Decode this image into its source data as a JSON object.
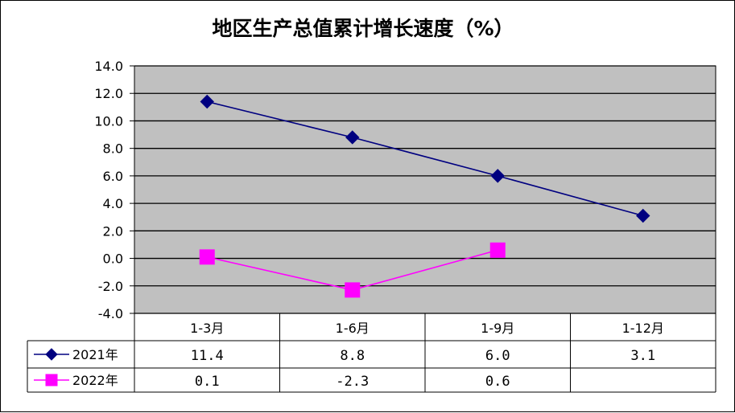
{
  "chart_data": {
    "type": "line",
    "title": "地区生产总值累计增长速度（%）",
    "categories": [
      "1-3月",
      "1-6月",
      "1-9月",
      "1-12月"
    ],
    "ylim": [
      -4.0,
      14.0
    ],
    "yticks": [
      "14.0",
      "12.0",
      "10.0",
      "8.0",
      "6.0",
      "4.0",
      "2.0",
      "0.0",
      "-2.0",
      "-4.0"
    ],
    "grid": true,
    "legend": "data-table",
    "series": [
      {
        "name": "2021年",
        "values": [
          11.4,
          8.8,
          6.0,
          3.1
        ],
        "labels": [
          "11.4",
          "8.8",
          "6.0",
          "3.1"
        ],
        "color": "#000080",
        "marker": "diamond"
      },
      {
        "name": "2022年",
        "values": [
          0.1,
          -2.3,
          0.6,
          null
        ],
        "labels": [
          "0.1",
          "-2.3",
          "0.6",
          ""
        ],
        "color": "#ff00ff",
        "marker": "square"
      }
    ],
    "plot_background": "#c0c0c0"
  }
}
